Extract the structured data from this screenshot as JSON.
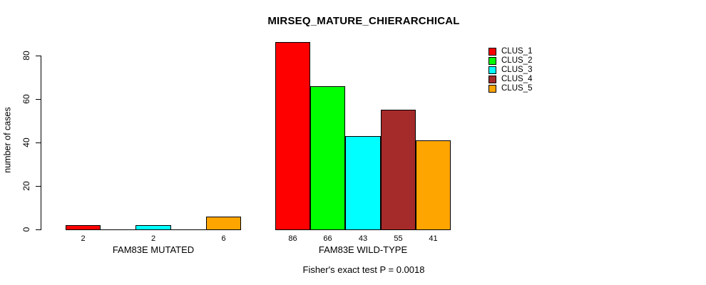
{
  "chart_data": {
    "type": "bar",
    "title": "MIRSEQ_MATURE_CHIERARCHICAL",
    "ylabel": "number of cases",
    "xlabel": "",
    "ylim": [
      0,
      86
    ],
    "yticks": [
      0,
      20,
      40,
      60,
      80
    ],
    "grid": false,
    "legend_position": "top-right",
    "categories": [
      "FAM83E MUTATED",
      "FAM83E WILD-TYPE"
    ],
    "series": [
      {
        "name": "CLUS_1",
        "color": "#FF0000",
        "values": [
          2,
          86
        ]
      },
      {
        "name": "CLUS_2",
        "color": "#00FF00",
        "values": [
          0,
          66
        ]
      },
      {
        "name": "CLUS_3",
        "color": "#00FFFF",
        "values": [
          2,
          43
        ]
      },
      {
        "name": "CLUS_4",
        "color": "#A52A2A",
        "values": [
          0,
          55
        ]
      },
      {
        "name": "CLUS_5",
        "color": "#FFA500",
        "values": [
          6,
          41
        ]
      }
    ],
    "bar_value_labels": [
      [
        "2",
        "",
        "2",
        "",
        "6"
      ],
      [
        "86",
        "66",
        "43",
        "55",
        "41"
      ]
    ],
    "footnote": "Fisher's exact test P = 0.0018",
    "axis_color": "#000000",
    "background": "#FFFFFF"
  }
}
